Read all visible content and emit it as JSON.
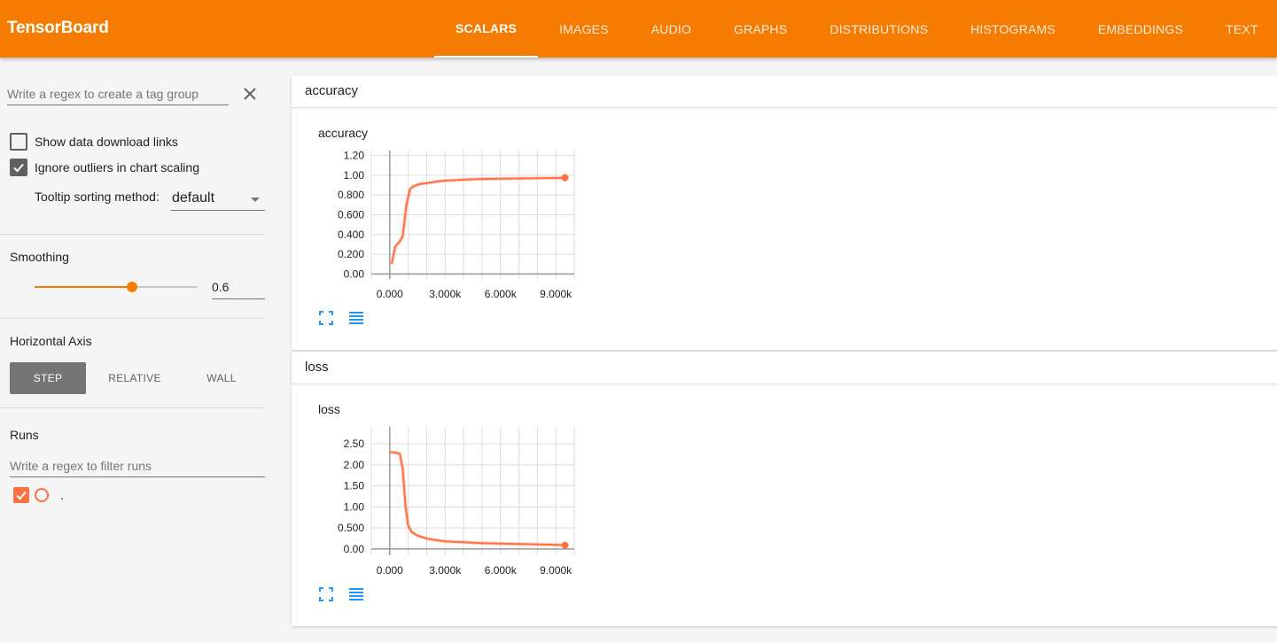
{
  "header": {
    "brand": "TensorBoard",
    "tabs": [
      {
        "label": "SCALARS",
        "active": true
      },
      {
        "label": "IMAGES",
        "active": false
      },
      {
        "label": "AUDIO",
        "active": false
      },
      {
        "label": "GRAPHS",
        "active": false
      },
      {
        "label": "DISTRIBUTIONS",
        "active": false
      },
      {
        "label": "HISTOGRAMS",
        "active": false
      },
      {
        "label": "EMBEDDINGS",
        "active": false
      },
      {
        "label": "TEXT",
        "active": false
      }
    ]
  },
  "sidebar": {
    "tag_regex_placeholder": "Write a regex to create a tag group",
    "show_download_label": "Show data download links",
    "show_download_checked": false,
    "ignore_outliers_label": "Ignore outliers in chart scaling",
    "ignore_outliers_checked": true,
    "tooltip_sort_label": "Tooltip sorting method:",
    "tooltip_sort_value": "default",
    "smoothing_title": "Smoothing",
    "smoothing_value": "0.6",
    "smoothing_fraction": 0.6,
    "horizontal_axis_title": "Horizontal Axis",
    "axis_options": [
      {
        "label": "STEP",
        "active": true
      },
      {
        "label": "RELATIVE",
        "active": false
      },
      {
        "label": "WALL",
        "active": false
      }
    ],
    "runs_title": "Runs",
    "runs_filter_placeholder": "Write a regex to filter runs",
    "runs": [
      {
        "name": ".",
        "checked": true,
        "color": "#ff7043"
      }
    ]
  },
  "colors": {
    "accent": "#f57c00",
    "run_color": "#ff7043"
  },
  "cards": [
    {
      "group": "accuracy",
      "chart_data": {
        "type": "line",
        "title": "accuracy",
        "xlim": [
          -1000,
          10000
        ],
        "ylim": [
          -0.05,
          1.25
        ],
        "x_ticks": [
          {
            "v": 0,
            "label": "0.000"
          },
          {
            "v": 3000,
            "label": "3.000k"
          },
          {
            "v": 6000,
            "label": "6.000k"
          },
          {
            "v": 9000,
            "label": "9.000k"
          }
        ],
        "y_ticks": [
          {
            "v": 1.2,
            "label": "1.20"
          },
          {
            "v": 1.0,
            "label": "1.00"
          },
          {
            "v": 0.8,
            "label": "0.800"
          },
          {
            "v": 0.6,
            "label": "0.600"
          },
          {
            "v": 0.4,
            "label": "0.400"
          },
          {
            "v": 0.2,
            "label": "0.200"
          },
          {
            "v": 0.0,
            "label": "0.00"
          }
        ],
        "series": [
          {
            "x": [
              100,
              300,
              500,
              700,
              900,
              1100,
              1300,
              1600,
              2000,
              2500,
              3000,
              4000,
              5000,
              6000,
              7000,
              8000,
              9000,
              9500
            ],
            "y": [
              0.1,
              0.28,
              0.32,
              0.38,
              0.7,
              0.86,
              0.89,
              0.91,
              0.92,
              0.935,
              0.945,
              0.955,
              0.962,
              0.965,
              0.968,
              0.97,
              0.972,
              0.975
            ]
          }
        ]
      }
    },
    {
      "group": "loss",
      "chart_data": {
        "type": "line",
        "title": "loss",
        "xlim": [
          -1000,
          10000
        ],
        "ylim": [
          -0.15,
          2.9
        ],
        "x_ticks": [
          {
            "v": 0,
            "label": "0.000"
          },
          {
            "v": 3000,
            "label": "3.000k"
          },
          {
            "v": 6000,
            "label": "6.000k"
          },
          {
            "v": 9000,
            "label": "9.000k"
          }
        ],
        "y_ticks": [
          {
            "v": 2.5,
            "label": "2.50"
          },
          {
            "v": 2.0,
            "label": "2.00"
          },
          {
            "v": 1.5,
            "label": "1.50"
          },
          {
            "v": 1.0,
            "label": "1.00"
          },
          {
            "v": 0.5,
            "label": "0.500"
          },
          {
            "v": 0.0,
            "label": "0.00"
          }
        ],
        "series": [
          {
            "x": [
              0,
              300,
              550,
              700,
              850,
              1000,
              1200,
              1500,
              2000,
              2500,
              3000,
              4000,
              5000,
              6000,
              7000,
              8000,
              9000,
              9500
            ],
            "y": [
              2.3,
              2.29,
              2.26,
              1.9,
              1.05,
              0.55,
              0.4,
              0.32,
              0.25,
              0.21,
              0.18,
              0.16,
              0.14,
              0.13,
              0.12,
              0.11,
              0.1,
              0.09
            ]
          }
        ]
      }
    }
  ]
}
